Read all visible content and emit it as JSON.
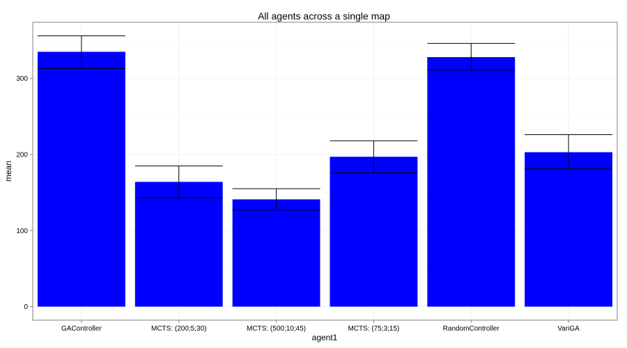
{
  "chart_data": {
    "type": "bar",
    "title": "All agents across a single map",
    "xlabel": "agent1",
    "ylabel": "mean",
    "categories": [
      "GAController",
      "MCTS: (200;5;30)",
      "MCTS: (500;10;45)",
      "MCTS: (75;3;15)",
      "RandomController",
      "VariGA"
    ],
    "values": [
      335,
      164,
      141,
      197,
      328,
      203
    ],
    "error_low": [
      313,
      143,
      127,
      176,
      311,
      181
    ],
    "error_high": [
      356,
      185,
      155,
      218,
      346,
      226
    ],
    "ylim": [
      -17.8,
      373.8
    ],
    "yticks": [
      0,
      100,
      200,
      300
    ],
    "ytick_labels": [
      "0",
      "100",
      "200",
      "300"
    ],
    "bar_color": "#0000ff",
    "grid": true,
    "legend": "none"
  }
}
